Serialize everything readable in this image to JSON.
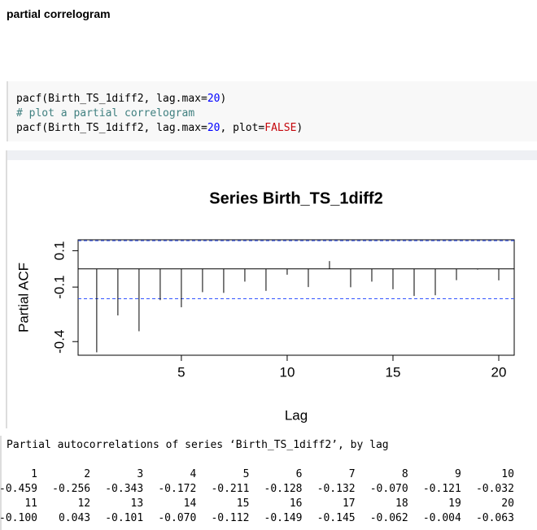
{
  "header": {
    "title": "partial correlogram"
  },
  "code": {
    "lines": [
      [
        "pacf(Birth_TS_1diff2, lag.max=",
        "20",
        ")"
      ],
      [
        "# plot a partial correlogram"
      ],
      [
        "pacf(Birth_TS_1diff2, lag.max=",
        "20",
        ", plot=",
        "FALSE",
        ")"
      ]
    ]
  },
  "chart_data": {
    "type": "pacf",
    "title": "Series  Birth_TS_1diff2",
    "x_label": "Lag",
    "y_label": "Partial ACF",
    "x": [
      1,
      2,
      3,
      4,
      5,
      6,
      7,
      8,
      9,
      10,
      11,
      12,
      13,
      14,
      15,
      16,
      17,
      18,
      19,
      20
    ],
    "values": [
      -0.459,
      -0.256,
      -0.343,
      -0.172,
      -0.211,
      -0.128,
      -0.132,
      -0.07,
      -0.121,
      -0.032,
      -0.1,
      0.043,
      -0.101,
      -0.07,
      -0.112,
      -0.149,
      -0.145,
      -0.062,
      -0.004,
      -0.063
    ],
    "color": "#000000",
    "ci_bounds": [
      -0.164,
      0.155
    ],
    "ci_color": "#3355ff",
    "xlim": [
      0.12,
      20.73
    ],
    "ylim": [
      -0.475,
      0.16
    ],
    "xticks": [
      5,
      10,
      15,
      20
    ],
    "yticks": [
      -0.4,
      -0.1,
      0.1
    ]
  },
  "output": {
    "heading": "Partial autocorrelations of series ‘Birth_TS_1diff2’, by lag",
    "rows": [
      [
        1,
        2,
        3,
        4,
        5,
        6,
        7,
        8,
        9,
        10
      ],
      [
        "-0.459",
        "-0.256",
        "-0.343",
        "-0.172",
        "-0.211",
        "-0.128",
        "-0.132",
        "-0.070",
        "-0.121",
        "-0.032"
      ],
      [
        11,
        12,
        13,
        14,
        15,
        16,
        17,
        18,
        19,
        20
      ],
      [
        "-0.100",
        "0.043",
        "-0.101",
        "-0.070",
        "-0.112",
        "-0.149",
        "-0.145",
        "-0.062",
        "-0.004",
        "-0.063"
      ]
    ]
  }
}
